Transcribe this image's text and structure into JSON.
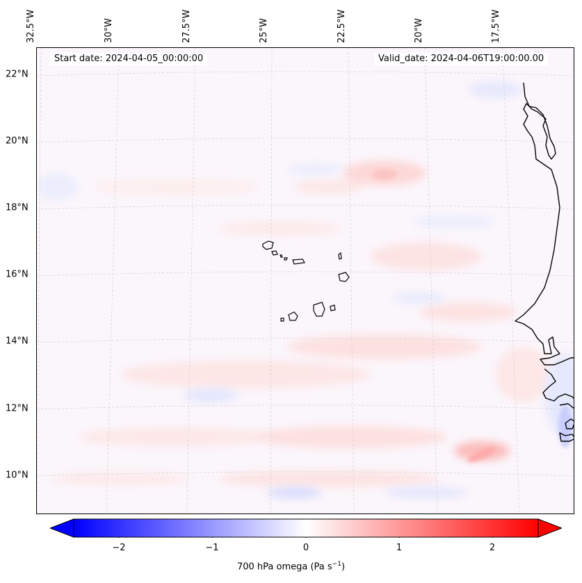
{
  "map": {
    "start_date": "Start date: 2024-04-05_00:00:00",
    "valid_date": "Valid_date: 2024-04-06T19:00:00.00",
    "lon_labels": [
      "32.5°W",
      "30°W",
      "27.5°W",
      "25°W",
      "22.5°W",
      "20°W",
      "17.5°W"
    ],
    "lat_labels": [
      "22°N",
      "20°N",
      "18°N",
      "16°N",
      "14°N",
      "12°N",
      "10°N"
    ],
    "field": "700 hPa omega",
    "region": "Cape Verde islands and West African coast"
  },
  "colorbar": {
    "label": "700 hPa omega (Pa s",
    "label_exp": "−1",
    "label_close": ")",
    "ticks": [
      "−2",
      "−1",
      "0",
      "1",
      "2"
    ],
    "vmin": -2.6,
    "vmax": 2.6,
    "extend": "both",
    "colors": {
      "min": "#0000ff",
      "mid": "#ffffff",
      "max": "#ff0000"
    }
  }
}
